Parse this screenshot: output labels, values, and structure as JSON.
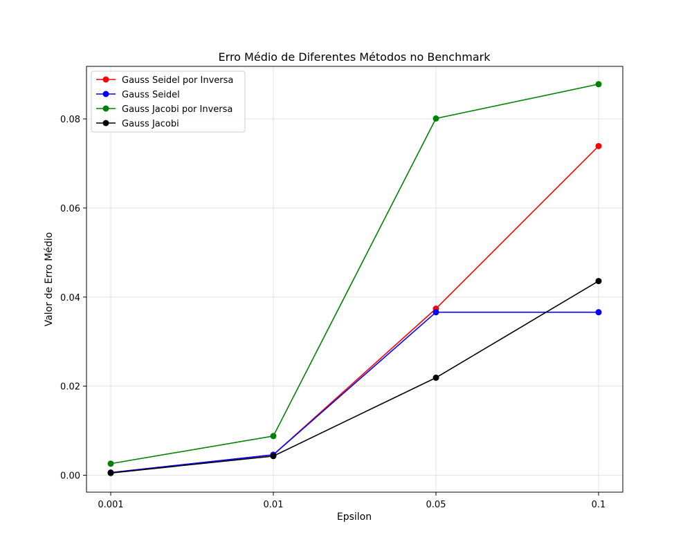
{
  "chart_data": {
    "type": "line",
    "title": "Erro Médio de Diferentes Métodos no Benchmark",
    "xlabel": "Epsilon",
    "ylabel": "Valor de Erro Médio",
    "categories": [
      "0.001",
      "0.01",
      "0.05",
      "0.1"
    ],
    "ylim": [
      -0.0038,
      0.0918
    ],
    "yticks": [
      "0.00",
      "0.02",
      "0.04",
      "0.06",
      "0.08"
    ],
    "ytick_values": [
      0.0,
      0.02,
      0.04,
      0.06,
      0.08
    ],
    "grid": true,
    "legend_position": "top-left",
    "series": [
      {
        "name": "Gauss Seidel por Inversa",
        "color": "#ff0000",
        "values": [
          0.0006,
          0.0046,
          0.0374,
          0.0739
        ]
      },
      {
        "name": "Gauss Seidel",
        "color": "#0000ff",
        "values": [
          0.0006,
          0.0046,
          0.0366,
          0.0366
        ]
      },
      {
        "name": "Gauss Jacobi por Inversa",
        "color": "#008000",
        "values": [
          0.0026,
          0.0088,
          0.0801,
          0.0878
        ]
      },
      {
        "name": "Gauss Jacobi",
        "color": "#000000",
        "values": [
          0.0005,
          0.0043,
          0.0219,
          0.0436
        ]
      }
    ]
  }
}
